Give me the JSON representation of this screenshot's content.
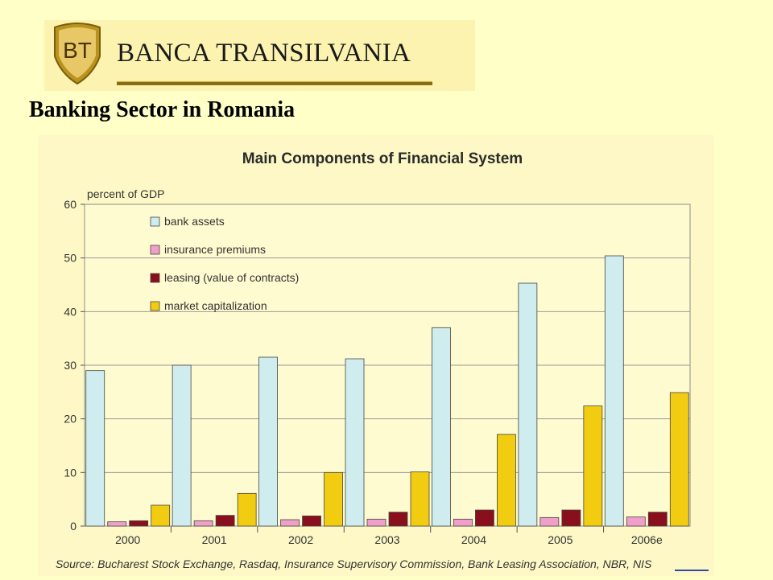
{
  "brand": {
    "logo_text": "BT",
    "name": "BANCA TRANSILVANIA"
  },
  "slide": {
    "title": "Banking Sector in Romania"
  },
  "chart_data": {
    "type": "bar",
    "title": "Main Components of Financial System",
    "ylabel": "percent of GDP",
    "xlabel": "",
    "ylim": [
      0,
      60
    ],
    "yticks": [
      0,
      10,
      20,
      30,
      40,
      50,
      60
    ],
    "grid": true,
    "legend_position": "top-left",
    "categories": [
      "2000",
      "2001",
      "2002",
      "2003",
      "2004",
      "2005",
      "2006e"
    ],
    "series": [
      {
        "name": "bank assets",
        "color": "#cfecee",
        "values": [
          29,
          30,
          31.5,
          31.2,
          37,
          45.3,
          50.4
        ]
      },
      {
        "name": "insurance premiums",
        "color": "#f0a0c8",
        "values": [
          0.8,
          1,
          1.2,
          1.3,
          1.3,
          1.6,
          1.7
        ]
      },
      {
        "name": "leasing (value of contracts)",
        "color": "#8a0f1c",
        "values": [
          1,
          2,
          1.9,
          2.6,
          3,
          3,
          2.6
        ]
      },
      {
        "name": "market capitalization",
        "color": "#f2cc10",
        "values": [
          3.9,
          6.1,
          10,
          10.1,
          17.1,
          22.4,
          24.9
        ]
      }
    ],
    "source": "Source: Bucharest Stock Exchange, Rasdaq, Insurance Supervisory Commission, Bank Leasing Association, NBR, NIS"
  }
}
